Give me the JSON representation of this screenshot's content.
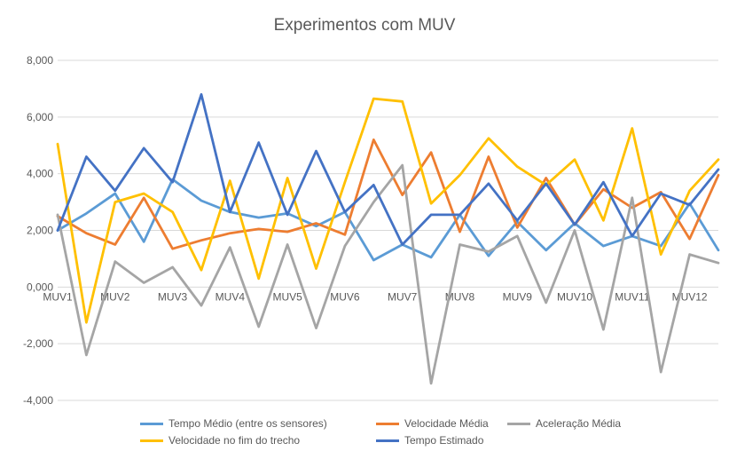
{
  "chart_data": {
    "type": "line",
    "title": "Experimentos com MUV",
    "categories": [
      "MUV1",
      "",
      "MUV2",
      "",
      "MUV3",
      "",
      "MUV4",
      "",
      "MUV5",
      "",
      "MUV6",
      "",
      "MUV7",
      "",
      "MUV8",
      "",
      "MUV9",
      "",
      "MUV10",
      "",
      "MUV11",
      "",
      "MUV12",
      ""
    ],
    "y_ticks": [
      "8,000",
      "6,000",
      "4,000",
      "2,000",
      "0,000",
      "-2,000",
      "-4,000"
    ],
    "ylim": [
      -4,
      8
    ],
    "grid": true,
    "legend_position": "bottom",
    "series": [
      {
        "name": "Tempo Médio (entre os sensores)",
        "color": "#5b9bd5",
        "values": [
          2.0,
          2.6,
          3.3,
          1.6,
          3.8,
          3.05,
          2.65,
          2.45,
          2.6,
          2.15,
          2.65,
          0.95,
          1.5,
          1.05,
          2.55,
          1.1,
          2.3,
          1.3,
          2.25,
          1.45,
          1.8,
          1.45,
          2.95,
          1.3
        ]
      },
      {
        "name": "Velocidade Média",
        "color": "#ed7d31",
        "values": [
          2.5,
          1.9,
          1.5,
          3.15,
          1.35,
          1.65,
          1.9,
          2.05,
          1.95,
          2.25,
          1.85,
          5.2,
          3.25,
          4.75,
          1.95,
          4.6,
          2.1,
          3.85,
          2.2,
          3.45,
          2.8,
          3.35,
          1.7,
          3.95
        ]
      },
      {
        "name": "Aceleração Média",
        "color": "#a5a5a5",
        "values": [
          2.55,
          -2.4,
          0.9,
          0.15,
          0.7,
          -0.65,
          1.4,
          -1.4,
          1.5,
          -1.45,
          1.45,
          3.0,
          4.3,
          -3.4,
          1.5,
          1.25,
          1.8,
          -0.55,
          2.0,
          -1.5,
          3.15,
          -3.0,
          1.15,
          0.85
        ]
      },
      {
        "name": "Velocidade no fim do trecho",
        "color": "#ffc000",
        "values": [
          5.05,
          -1.25,
          3.0,
          3.3,
          2.65,
          0.6,
          3.75,
          0.3,
          3.85,
          0.65,
          3.7,
          6.65,
          6.55,
          2.95,
          3.95,
          5.25,
          4.25,
          3.6,
          4.5,
          2.35,
          5.6,
          1.15,
          3.4,
          4.5
        ]
      },
      {
        "name": "Tempo Estimado",
        "color": "#4472c4",
        "values": [
          2.0,
          4.6,
          3.4,
          4.9,
          3.7,
          6.8,
          2.65,
          5.1,
          2.55,
          4.8,
          2.65,
          3.6,
          1.5,
          2.55,
          2.55,
          3.65,
          2.35,
          3.65,
          2.2,
          3.7,
          1.8,
          3.3,
          2.9,
          4.15
        ]
      }
    ]
  }
}
